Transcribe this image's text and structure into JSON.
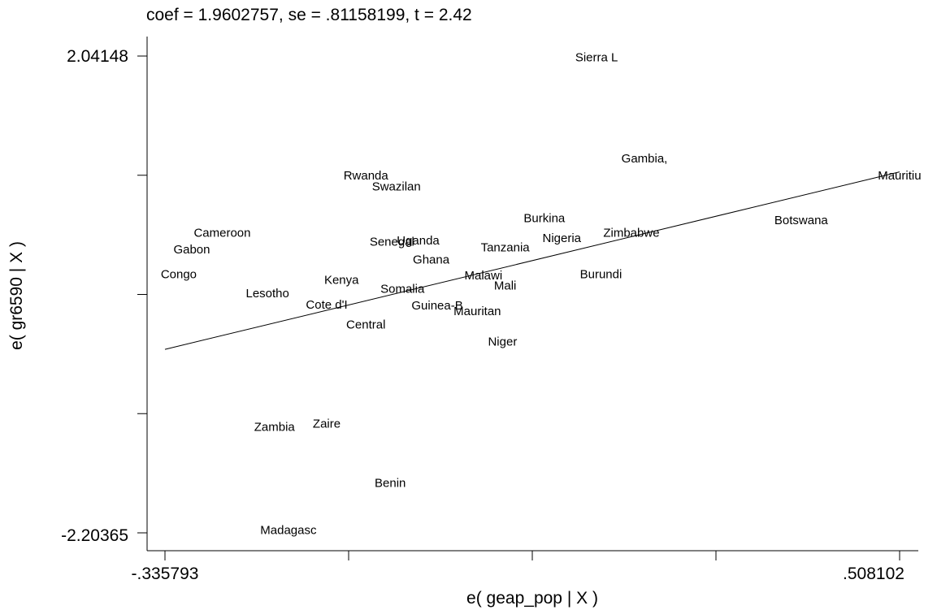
{
  "chart_data": {
    "type": "scatter",
    "title": "coef = 1.9602757, se = .81158199, t = 2.42",
    "xlabel": "e( geap_pop | X )",
    "ylabel": "e( gr6590 | X )",
    "xlim": [
      -0.335793,
      0.508102
    ],
    "ylim": [
      -2.20365,
      2.04148
    ],
    "x_tick_labels": [
      "-.335793",
      ".508102"
    ],
    "y_tick_labels": [
      "2.04148",
      "-2.20365"
    ],
    "fit_line": {
      "slope": 1.9602757,
      "x": [
        -0.335793,
        0.508102
      ],
      "y": [
        -0.57,
        1.01
      ]
    },
    "points": [
      {
        "label": "Sierra L",
        "x": 0.16,
        "y": 2.03
      },
      {
        "label": "Gambia,",
        "x": 0.215,
        "y": 1.13
      },
      {
        "label": "Mauritiu",
        "x": 0.508,
        "y": 0.98
      },
      {
        "label": "Rwanda",
        "x": -0.105,
        "y": 0.98
      },
      {
        "label": "Swazilan",
        "x": -0.07,
        "y": 0.88
      },
      {
        "label": "Burkina",
        "x": 0.1,
        "y": 0.6
      },
      {
        "label": "Botswana",
        "x": 0.395,
        "y": 0.58
      },
      {
        "label": "Cameroon",
        "x": -0.27,
        "y": 0.47
      },
      {
        "label": "Zimbabwe",
        "x": 0.2,
        "y": 0.47
      },
      {
        "label": "Nigeria",
        "x": 0.12,
        "y": 0.42
      },
      {
        "label": "Senegal",
        "x": -0.075,
        "y": 0.39
      },
      {
        "label": "Uganda",
        "x": -0.045,
        "y": 0.4
      },
      {
        "label": "Tanzania",
        "x": 0.055,
        "y": 0.34
      },
      {
        "label": "Gabon",
        "x": -0.305,
        "y": 0.32
      },
      {
        "label": "Ghana",
        "x": -0.03,
        "y": 0.23
      },
      {
        "label": "Congo",
        "x": -0.32,
        "y": 0.1
      },
      {
        "label": "Malawi",
        "x": 0.03,
        "y": 0.09
      },
      {
        "label": "Burundi",
        "x": 0.165,
        "y": 0.1
      },
      {
        "label": "Kenya",
        "x": -0.133,
        "y": 0.05
      },
      {
        "label": "Mali",
        "x": 0.055,
        "y": 0.0
      },
      {
        "label": "Somalia",
        "x": -0.063,
        "y": -0.03
      },
      {
        "label": "Lesotho",
        "x": -0.218,
        "y": -0.07
      },
      {
        "label": "Cote d'I",
        "x": -0.15,
        "y": -0.17
      },
      {
        "label": "Guinea-B",
        "x": -0.023,
        "y": -0.18
      },
      {
        "label": "Mauritan",
        "x": 0.023,
        "y": -0.23
      },
      {
        "label": "Central",
        "x": -0.105,
        "y": -0.35
      },
      {
        "label": "Niger",
        "x": 0.052,
        "y": -0.5
      },
      {
        "label": "Zambia",
        "x": -0.21,
        "y": -1.26
      },
      {
        "label": "Zaire",
        "x": -0.15,
        "y": -1.23
      },
      {
        "label": "Benin",
        "x": -0.077,
        "y": -1.76
      },
      {
        "label": "Madagasc",
        "x": -0.194,
        "y": -2.18
      }
    ]
  }
}
